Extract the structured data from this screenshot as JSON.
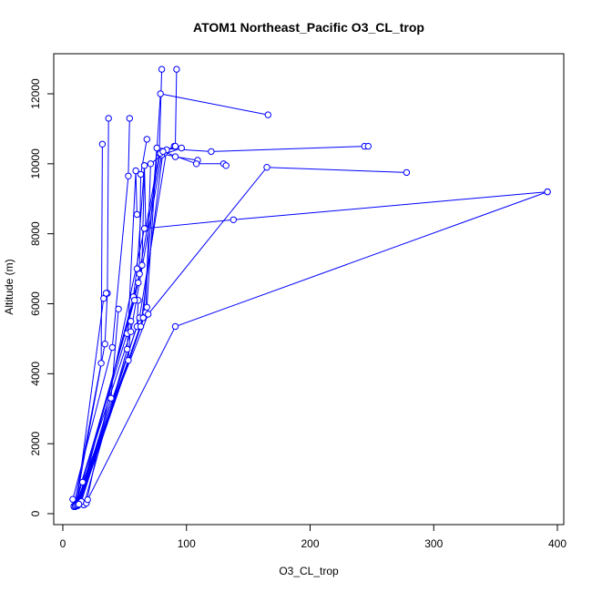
{
  "chart_data": {
    "type": "line",
    "title": "ATOM1 Northeast_Pacific O3_CL_trop",
    "xlabel": "O3_CL_trop",
    "ylabel": "Altitude (m)",
    "xlim": [
      0,
      400
    ],
    "ylim": [
      0,
      12500
    ],
    "xticks": [
      0,
      100,
      200,
      300,
      400
    ],
    "yticks": [
      0,
      2000,
      4000,
      6000,
      8000,
      10000,
      12000
    ],
    "grid": false,
    "legend": "none",
    "color": "#0000ff",
    "marker": "open-circle",
    "series": [
      {
        "x": [
          9,
          31,
          32
        ],
        "y": [
          220,
          4300,
          10560
        ]
      },
      {
        "x": [
          10,
          34,
          36,
          37
        ],
        "y": [
          200,
          4850,
          6300,
          11300
        ]
      },
      {
        "x": [
          11,
          33,
          35
        ],
        "y": [
          260,
          6150,
          6300
        ]
      },
      {
        "x": [
          8,
          40,
          53,
          54
        ],
        "y": [
          410,
          4750,
          9650,
          11300
        ]
      },
      {
        "x": [
          12,
          39,
          45
        ],
        "y": [
          230,
          3300,
          5850
        ]
      },
      {
        "x": [
          17,
          52,
          59,
          60
        ],
        "y": [
          250,
          4700,
          9800,
          8550
        ]
      },
      {
        "x": [
          9,
          52,
          57,
          60,
          66
        ],
        "y": [
          200,
          5150,
          6200,
          7000,
          9950
        ]
      },
      {
        "x": [
          10,
          53,
          55
        ],
        "y": [
          210,
          4380,
          5500
        ]
      },
      {
        "x": [
          11,
          60,
          61
        ],
        "y": [
          230,
          5350,
          6100
        ]
      },
      {
        "x": [
          12,
          61,
          62,
          63,
          68
        ],
        "y": [
          240,
          6600,
          6850,
          9700,
          10700
        ]
      },
      {
        "x": [
          13,
          64,
          66,
          67,
          78,
          80
        ],
        "y": [
          300,
          7100,
          9950,
          8150,
          10300,
          12700
        ]
      },
      {
        "x": [
          14,
          67,
          71,
          82,
          90
        ],
        "y": [
          320,
          5750,
          10000,
          10300,
          10500
        ]
      },
      {
        "x": [
          15,
          62,
          84,
          91,
          92
        ],
        "y": [
          350,
          5600,
          10400,
          10500,
          12700
        ]
      },
      {
        "x": [
          9,
          55,
          80,
          96
        ],
        "y": [
          210,
          5200,
          10250,
          10450
        ]
      },
      {
        "x": [
          10,
          58,
          79,
          91,
          109
        ],
        "y": [
          220,
          6100,
          10300,
          10200,
          10100
        ]
      },
      {
        "x": [
          11,
          63,
          81,
          108,
          130,
          132
        ],
        "y": [
          240,
          5350,
          10350,
          10000,
          10000,
          9950
        ]
      },
      {
        "x": [
          12,
          65,
          76,
          120,
          244,
          247
        ],
        "y": [
          250,
          5600,
          10450,
          10350,
          10500,
          10500
        ]
      },
      {
        "x": [
          13,
          68,
          79,
          166
        ],
        "y": [
          270,
          5900,
          12000,
          11400
        ]
      },
      {
        "x": [
          16,
          69,
          165,
          278
        ],
        "y": [
          900,
          5700,
          9900,
          9750
        ]
      },
      {
        "x": [
          19,
          66,
          138,
          392
        ],
        "y": [
          300,
          8150,
          8400,
          9200
        ]
      },
      {
        "x": [
          20,
          91,
          392
        ],
        "y": [
          400,
          5350,
          9200
        ]
      }
    ]
  }
}
